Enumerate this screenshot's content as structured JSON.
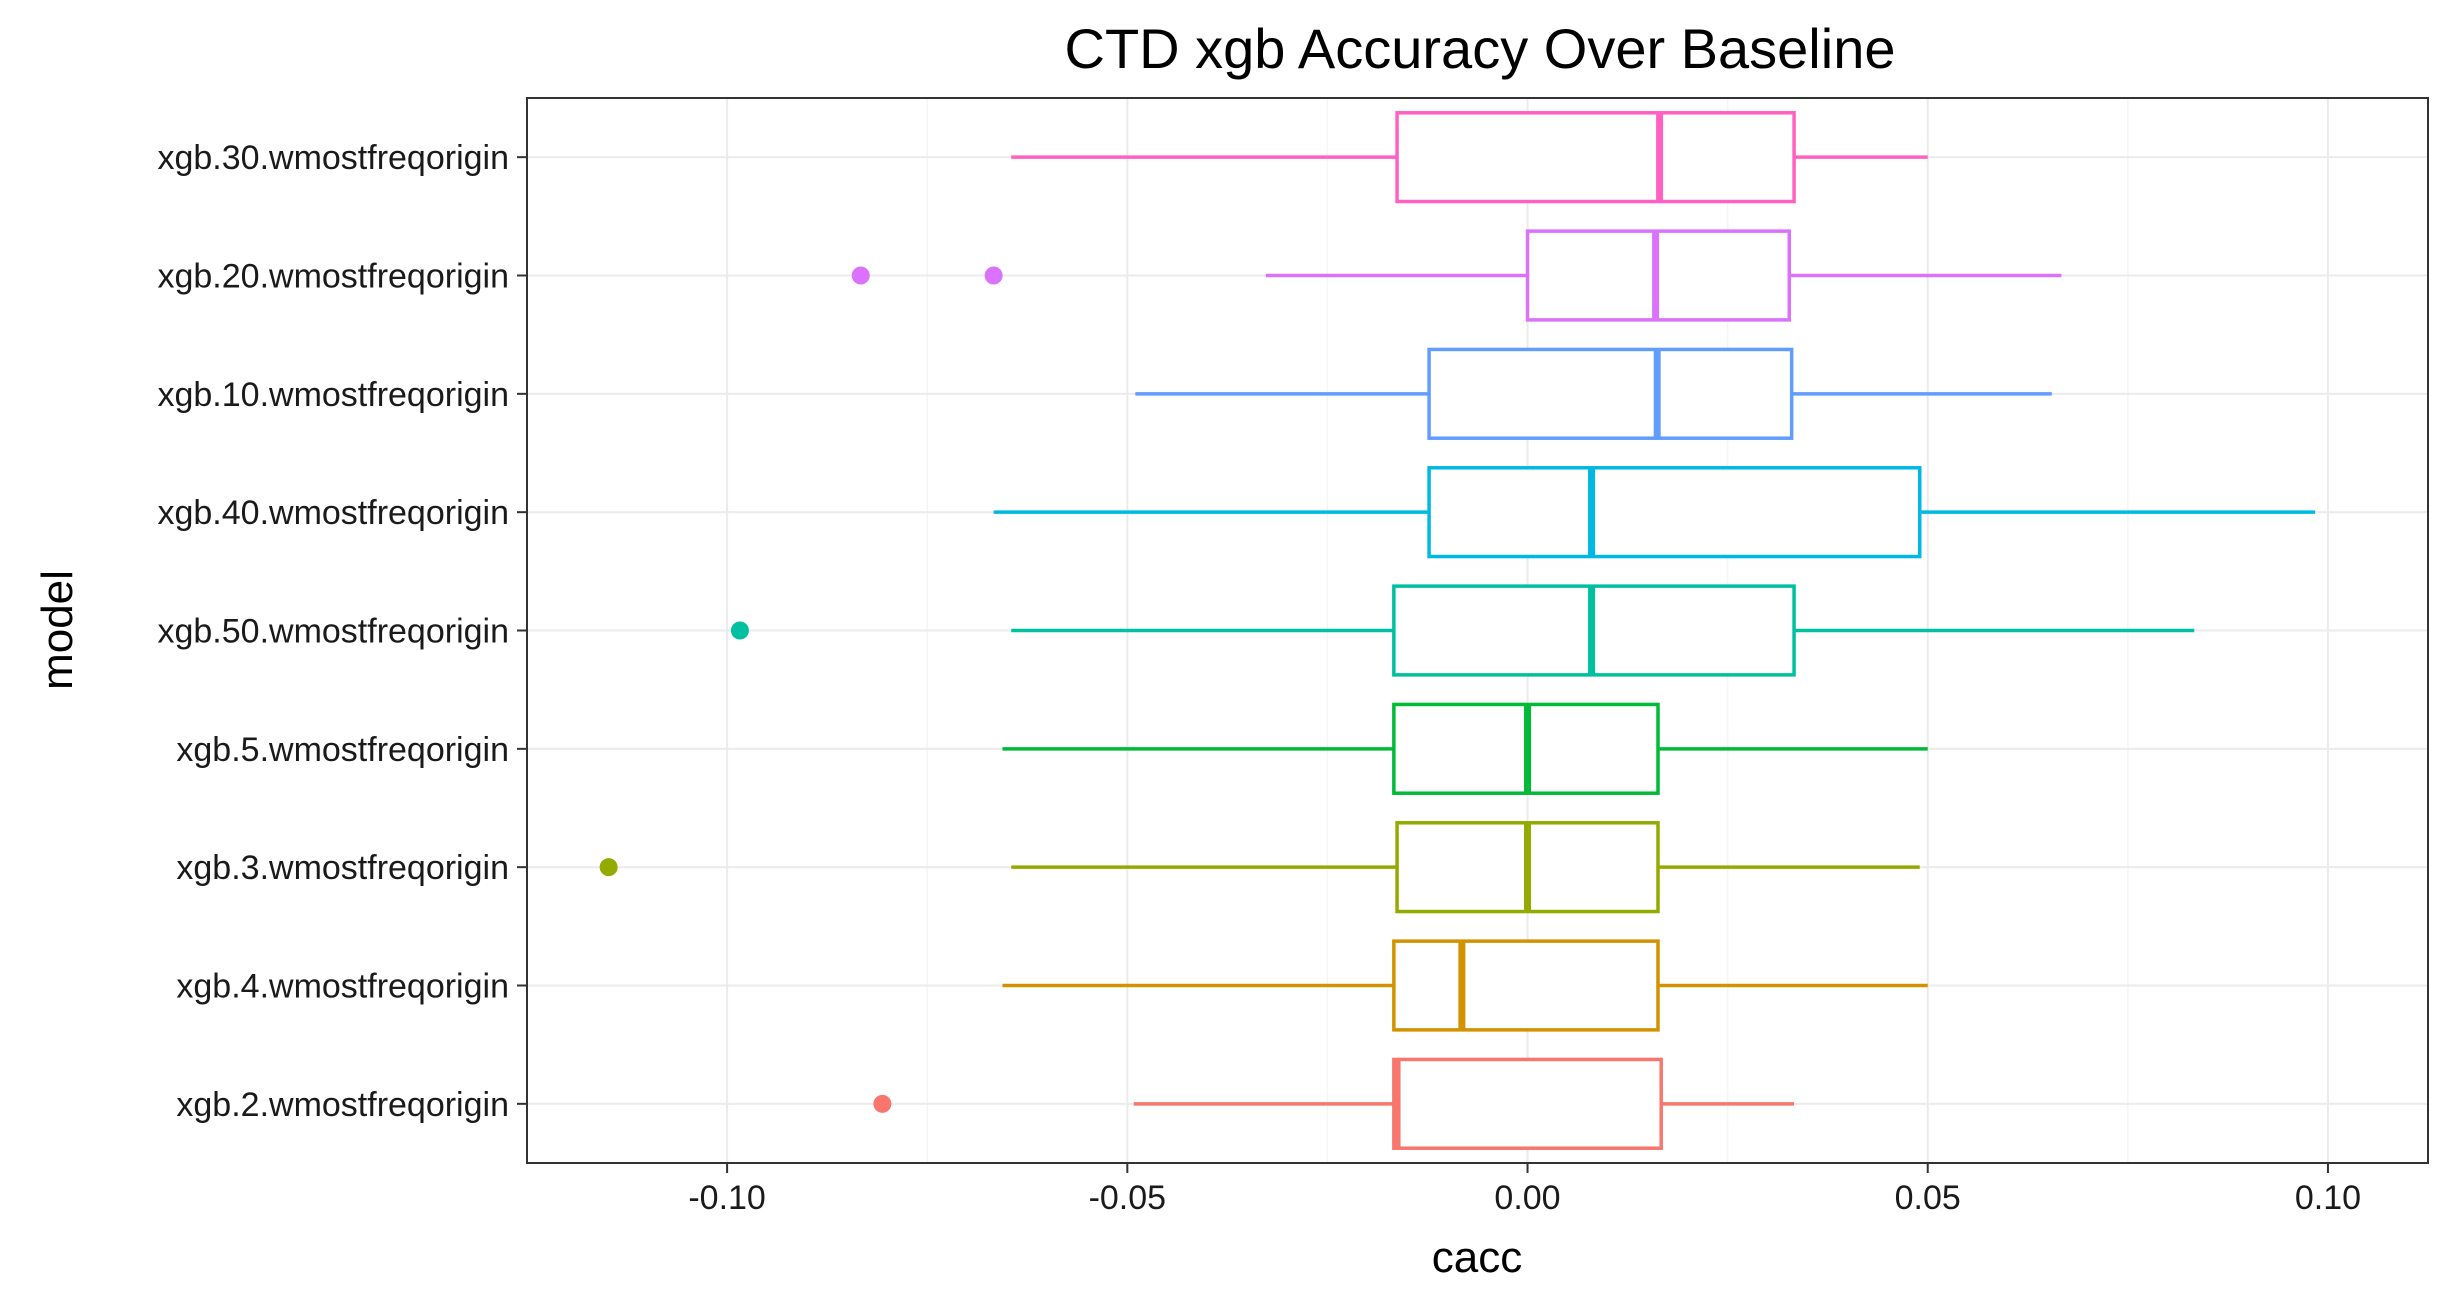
{
  "chart_data": {
    "type": "boxplot",
    "orientation": "horizontal",
    "title": "CTD xgb Accuracy Over Baseline",
    "xlabel": "cacc",
    "ylabel": "model",
    "xlim": [
      -0.125,
      0.1125
    ],
    "xticks": [
      -0.1,
      -0.05,
      0.0,
      0.05,
      0.1
    ],
    "xtick_labels": [
      "-0.10",
      "-0.05",
      "0.00",
      "0.05",
      "0.10"
    ],
    "grid": true,
    "legend": "none",
    "categories": [
      "xgb.30.wmostfreqorigin",
      "xgb.20.wmostfreqorigin",
      "xgb.10.wmostfreqorigin",
      "xgb.40.wmostfreqorigin",
      "xgb.50.wmostfreqorigin",
      "xgb.5.wmostfreqorigin",
      "xgb.3.wmostfreqorigin",
      "xgb.4.wmostfreqorigin",
      "xgb.2.wmostfreqorigin"
    ],
    "series": [
      {
        "category": "xgb.30.wmostfreqorigin",
        "color": "#FF61C3",
        "whisker_low": -0.0645,
        "q1": -0.0163,
        "median": 0.0165,
        "q3": 0.0333,
        "whisker_high": 0.05,
        "outliers": []
      },
      {
        "category": "xgb.20.wmostfreqorigin",
        "color": "#DB72FB",
        "whisker_low": -0.0327,
        "q1": 0.0,
        "median": 0.016,
        "q3": 0.0327,
        "whisker_high": 0.0667,
        "outliers": [
          -0.0833,
          -0.0667
        ]
      },
      {
        "category": "xgb.10.wmostfreqorigin",
        "color": "#619CFF",
        "whisker_low": -0.049,
        "q1": -0.0123,
        "median": 0.0162,
        "q3": 0.033,
        "whisker_high": 0.0655,
        "outliers": []
      },
      {
        "category": "xgb.40.wmostfreqorigin",
        "color": "#00B9E3",
        "whisker_low": -0.0667,
        "q1": -0.0123,
        "median": 0.008,
        "q3": 0.049,
        "whisker_high": 0.0984,
        "outliers": []
      },
      {
        "category": "xgb.50.wmostfreqorigin",
        "color": "#00C19F",
        "whisker_low": -0.0645,
        "q1": -0.0167,
        "median": 0.008,
        "q3": 0.0333,
        "whisker_high": 0.0833,
        "outliers": [
          -0.0984
        ]
      },
      {
        "category": "xgb.5.wmostfreqorigin",
        "color": "#00BA38",
        "whisker_low": -0.0656,
        "q1": -0.0167,
        "median": 0.0,
        "q3": 0.0163,
        "whisker_high": 0.05,
        "outliers": []
      },
      {
        "category": "xgb.3.wmostfreqorigin",
        "color": "#93AA00",
        "whisker_low": -0.0645,
        "q1": -0.0163,
        "median": 0.0,
        "q3": 0.0163,
        "whisker_high": 0.049,
        "outliers": [
          -0.1148
        ]
      },
      {
        "category": "xgb.4.wmostfreqorigin",
        "color": "#D39200",
        "whisker_low": -0.0656,
        "q1": -0.0167,
        "median": -0.0082,
        "q3": 0.0163,
        "whisker_high": 0.05,
        "outliers": []
      },
      {
        "category": "xgb.2.wmostfreqorigin",
        "color": "#F8766D",
        "whisker_low": -0.0492,
        "q1": -0.0167,
        "median": -0.0163,
        "q3": 0.0167,
        "whisker_high": 0.0333,
        "outliers": [
          -0.0806
        ]
      }
    ],
    "colors": {
      "panel_border": "#333333",
      "grid_major": "#EBEBEB",
      "grid_minor": "#F5F5F5",
      "tick": "#333333"
    }
  }
}
